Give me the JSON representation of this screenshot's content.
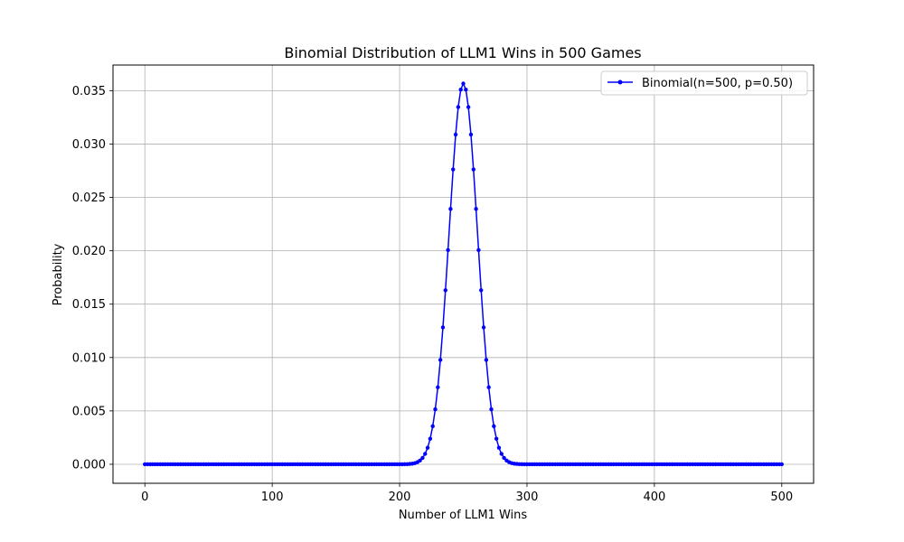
{
  "chart_data": {
    "type": "line",
    "title": "Binomial Distribution of LLM1 Wins in 500 Games",
    "xlabel": "Number of LLM1 Wins",
    "ylabel": "Probability",
    "xlim": [
      -25,
      525
    ],
    "ylim": [
      -0.00178,
      0.0374
    ],
    "xticks": [
      0,
      100,
      200,
      300,
      400,
      500
    ],
    "yticks": [
      0.0,
      0.005,
      0.01,
      0.015,
      0.02,
      0.025,
      0.03,
      0.035
    ],
    "ytick_labels": [
      "0.000",
      "0.005",
      "0.010",
      "0.015",
      "0.020",
      "0.025",
      "0.030",
      "0.035"
    ],
    "grid": true,
    "legend_position": "top-right",
    "series": [
      {
        "name": "Binomial(n=500, p=0.50)",
        "color": "#0000ff",
        "marker": "point",
        "distribution": {
          "n": 500,
          "p": 0.5,
          "x_min": 0,
          "x_max": 500,
          "x_step": 2
        }
      }
    ]
  }
}
